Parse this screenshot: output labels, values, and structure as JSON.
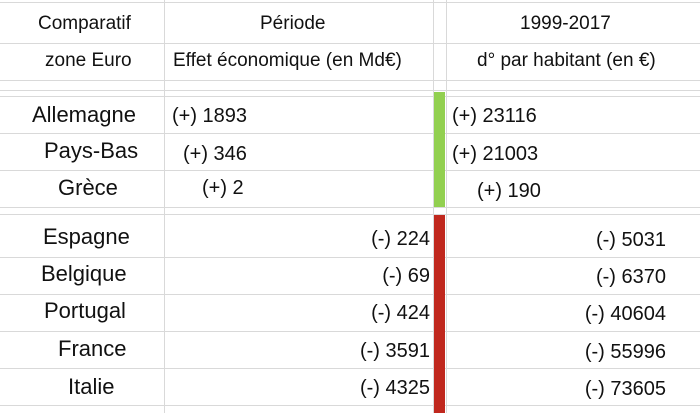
{
  "header": {
    "col1_line1": "Comparatif",
    "col1_line2": "zone Euro",
    "col2_line1": "Période",
    "col2_line2": "Effet économique (en Md€)",
    "col3_line1": "1999-2017",
    "col3_line2": "d° par habitant (en €)"
  },
  "colors": {
    "positive_bar": "#92d050",
    "negative_bar": "#c0281e",
    "gridline": "#d9d9d9"
  },
  "positive_rows": [
    {
      "country": "Allemagne",
      "effect": "(+) 1893",
      "per_capita": "(+) 23116"
    },
    {
      "country": "Pays-Bas",
      "effect": "(+) 346",
      "per_capita": "(+) 21003"
    },
    {
      "country": "Grèce",
      "effect": "(+) 2",
      "per_capita": "(+) 190"
    }
  ],
  "negative_rows": [
    {
      "country": "Espagne",
      "effect": "(-) 224",
      "per_capita": "(-) 5031"
    },
    {
      "country": "Belgique",
      "effect": "(-) 69",
      "per_capita": "(-) 6370"
    },
    {
      "country": "Portugal",
      "effect": "(-) 424",
      "per_capita": "(-) 40604"
    },
    {
      "country": "France",
      "effect": "(-) 3591",
      "per_capita": "(-) 55996"
    },
    {
      "country": "Italie",
      "effect": "(-) 4325",
      "per_capita": "(-) 73605"
    }
  ]
}
